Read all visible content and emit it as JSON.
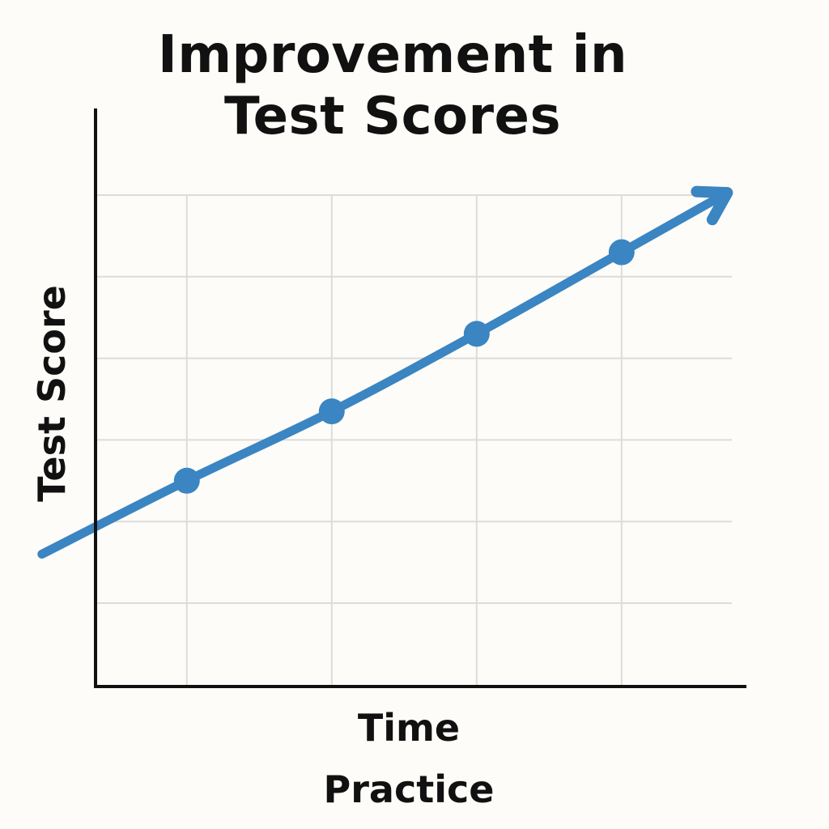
{
  "chart_data": {
    "type": "line",
    "title_lines": [
      "Improvement in",
      "Test Scores"
    ],
    "xlabel_lines": [
      "Time",
      "Practice"
    ],
    "ylabel": "Test Score",
    "x": [
      0,
      1,
      2,
      3,
      4,
      4.7
    ],
    "values": [
      0.6,
      1.5,
      2.35,
      3.3,
      4.3,
      5.0
    ],
    "points_x": [
      1,
      2,
      3,
      4
    ],
    "points_y": [
      1.5,
      2.35,
      3.3,
      4.3
    ],
    "xlim": [
      0.37,
      4.85
    ],
    "ylim": [
      -0.25,
      5
    ],
    "x_gridlines": [
      1,
      2,
      3,
      4
    ],
    "y_gridlines": [
      0,
      1,
      2,
      3,
      4,
      5
    ],
    "tick_labels_shown": false,
    "arrowhead_at_end": true,
    "grid": true,
    "legend": "none",
    "colors": {
      "line": "#3a85c2",
      "grid": "#dcdcdc",
      "axis": "#111111",
      "background": "#fdfcf8"
    }
  }
}
